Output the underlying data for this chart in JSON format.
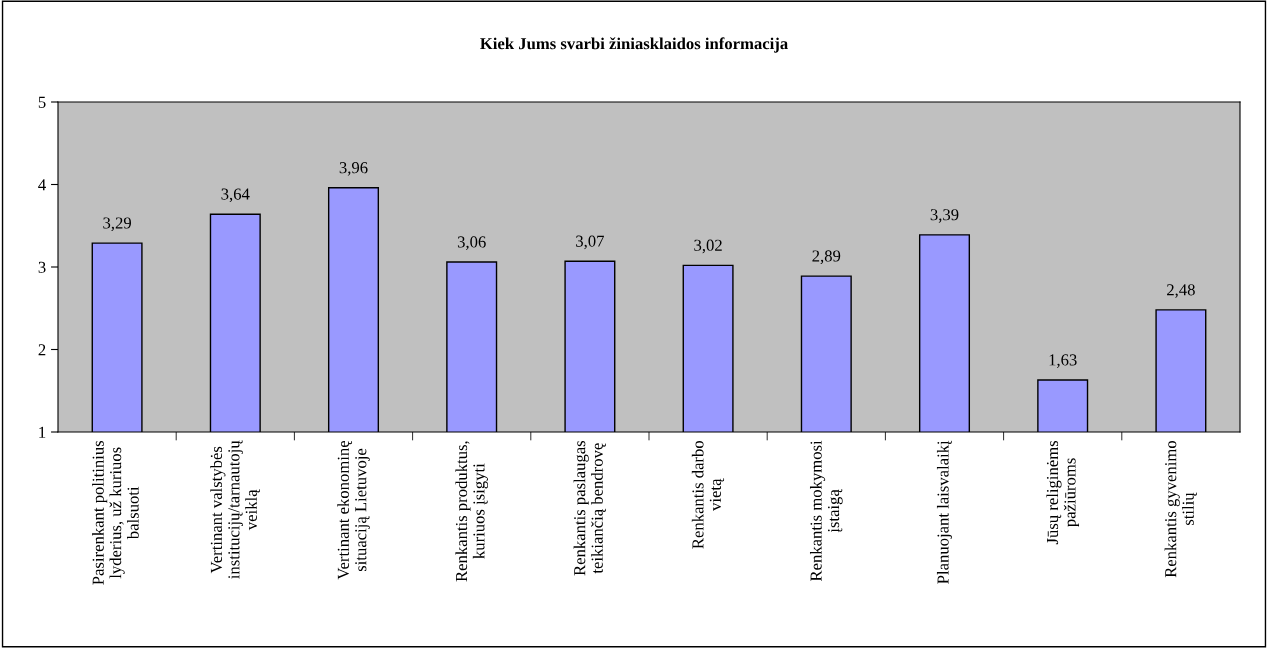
{
  "chart_data": {
    "type": "bar",
    "title": "Kiek Jums svarbi žiniasklaidos informacija",
    "categories": [
      "Pasirenkant politinius\nlyderius, už kuriuos\nbalsuoti",
      "Vertinant valstybės\ninstitucijų/tarnautojų\nveiklą",
      "Vertinant ekonominę\nsituaciją Lietuvoje",
      "Renkantis produktus,\nkuriuos įsigyti",
      "Renkantis paslaugas\nteikiančią bendrovę",
      "Renkantis darbo\nvietą",
      "Renkantis mokymosi\nįstaigą",
      "Planuojant laisvalaikį",
      "Jūsų religinėms\npažiūroms",
      "Renkantis gyvenimo\nstilių"
    ],
    "values": [
      3.29,
      3.64,
      3.96,
      3.06,
      3.07,
      3.02,
      2.89,
      3.39,
      1.63,
      2.48
    ],
    "value_labels": [
      "3,29",
      "3,64",
      "3,96",
      "3,06",
      "3,07",
      "3,02",
      "2,89",
      "3,39",
      "1,63",
      "2,48"
    ],
    "color": "#9999ff",
    "ylim": [
      1,
      5
    ],
    "yticks": [
      1,
      2,
      3,
      4,
      5
    ],
    "grid": false,
    "legend": false
  }
}
